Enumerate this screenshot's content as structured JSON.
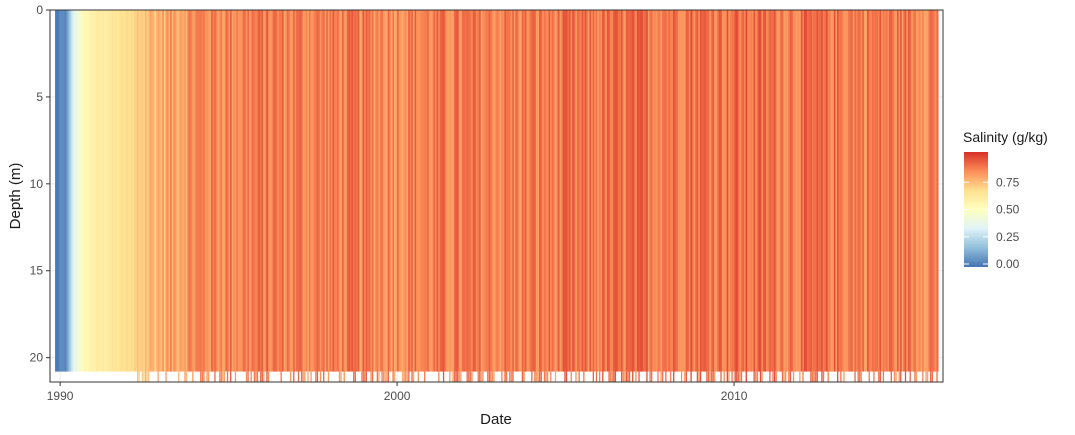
{
  "chart_data": {
    "type": "heatmap",
    "title": "",
    "xlabel": "Date",
    "ylabel": "Depth (m)",
    "x_range": [
      1989.7,
      2016.2
    ],
    "y_range": [
      0,
      21.4
    ],
    "y_reversed": true,
    "x_ticks": [
      {
        "value": 1990,
        "label": "1990"
      },
      {
        "value": 2000,
        "label": "2000"
      },
      {
        "value": 2010,
        "label": "2010"
      }
    ],
    "y_ticks": [
      {
        "value": 0,
        "label": "0"
      },
      {
        "value": 5,
        "label": "5"
      },
      {
        "value": 10,
        "label": "10"
      },
      {
        "value": 15,
        "label": "15"
      },
      {
        "value": 20,
        "label": "20"
      }
    ],
    "grid": true,
    "max_depth_sampled": 20.8,
    "legend": {
      "title": "Salinity (g/kg)",
      "placement": "right",
      "range": [
        0,
        1
      ],
      "ticks": [
        {
          "value": 0.0,
          "label": "0.00"
        },
        {
          "value": 0.25,
          "label": "0.25"
        },
        {
          "value": 0.5,
          "label": "0.50"
        },
        {
          "value": 0.75,
          "label": "0.75"
        }
      ],
      "palette": [
        "#4575b4",
        "#91bfdb",
        "#e0f3f8",
        "#ffffbf",
        "#fee090",
        "#fc8d59",
        "#d73027"
      ]
    },
    "salinity_profile": [
      {
        "date": 1989.8,
        "salinity": 0.0
      },
      {
        "date": 1990.2,
        "salinity": 0.06
      },
      {
        "date": 1990.4,
        "salinity": 0.35
      },
      {
        "date": 1990.7,
        "salinity": 0.52
      },
      {
        "date": 1991.0,
        "salinity": 0.58
      },
      {
        "date": 1991.5,
        "salinity": 0.62
      },
      {
        "date": 1992.0,
        "salinity": 0.66
      },
      {
        "date": 1992.5,
        "salinity": 0.73
      },
      {
        "date": 1993.0,
        "salinity": 0.77
      },
      {
        "date": 1994.0,
        "salinity": 0.84
      },
      {
        "date": 1996.0,
        "salinity": 0.86
      },
      {
        "date": 2000.0,
        "salinity": 0.85
      },
      {
        "date": 2005.0,
        "salinity": 0.86
      },
      {
        "date": 2009.0,
        "salinity": 0.89
      },
      {
        "date": 2012.0,
        "salinity": 0.87
      },
      {
        "date": 2016.0,
        "salinity": 0.86
      }
    ]
  }
}
